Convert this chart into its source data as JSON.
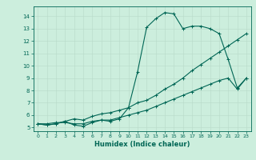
{
  "xlabel": "Humidex (Indice chaleur)",
  "bg_color": "#cceedd",
  "grid_color": "#bbddcc",
  "line_color": "#006655",
  "xlim": [
    -0.5,
    23.5
  ],
  "ylim": [
    4.7,
    14.8
  ],
  "yticks": [
    5,
    6,
    7,
    8,
    9,
    10,
    11,
    12,
    13,
    14
  ],
  "xticks": [
    0,
    1,
    2,
    3,
    4,
    5,
    6,
    7,
    8,
    9,
    10,
    11,
    12,
    13,
    14,
    15,
    16,
    17,
    18,
    19,
    20,
    21,
    22,
    23
  ],
  "line1_x": [
    0,
    1,
    2,
    3,
    4,
    5,
    6,
    7,
    8,
    9,
    10,
    11,
    12,
    13,
    14,
    15,
    16,
    17,
    18,
    19,
    20,
    21,
    22,
    23
  ],
  "line1_y": [
    5.3,
    5.2,
    5.3,
    5.5,
    5.2,
    5.1,
    5.4,
    5.6,
    5.5,
    5.7,
    6.6,
    9.5,
    13.1,
    13.8,
    14.3,
    14.2,
    13.0,
    13.2,
    13.2,
    13.0,
    12.6,
    10.5,
    8.2,
    9.0
  ],
  "line2_x": [
    0,
    1,
    2,
    3,
    4,
    5,
    6,
    7,
    8,
    9,
    10,
    11,
    12,
    13,
    14,
    15,
    16,
    17,
    18,
    19,
    20,
    21,
    22,
    23
  ],
  "line2_y": [
    5.3,
    5.2,
    5.3,
    5.5,
    5.7,
    5.6,
    5.9,
    6.1,
    6.2,
    6.4,
    6.6,
    7.0,
    7.2,
    7.6,
    8.1,
    8.5,
    9.0,
    9.6,
    10.1,
    10.6,
    11.1,
    11.6,
    12.1,
    12.6
  ],
  "line3_x": [
    0,
    1,
    2,
    3,
    4,
    5,
    6,
    7,
    8,
    9,
    10,
    11,
    12,
    13,
    14,
    15,
    16,
    17,
    18,
    19,
    20,
    21,
    22,
    23
  ],
  "line3_y": [
    5.3,
    5.3,
    5.4,
    5.4,
    5.3,
    5.3,
    5.5,
    5.6,
    5.6,
    5.8,
    6.0,
    6.2,
    6.4,
    6.7,
    7.0,
    7.3,
    7.6,
    7.9,
    8.2,
    8.5,
    8.8,
    9.0,
    8.1,
    9.0
  ]
}
